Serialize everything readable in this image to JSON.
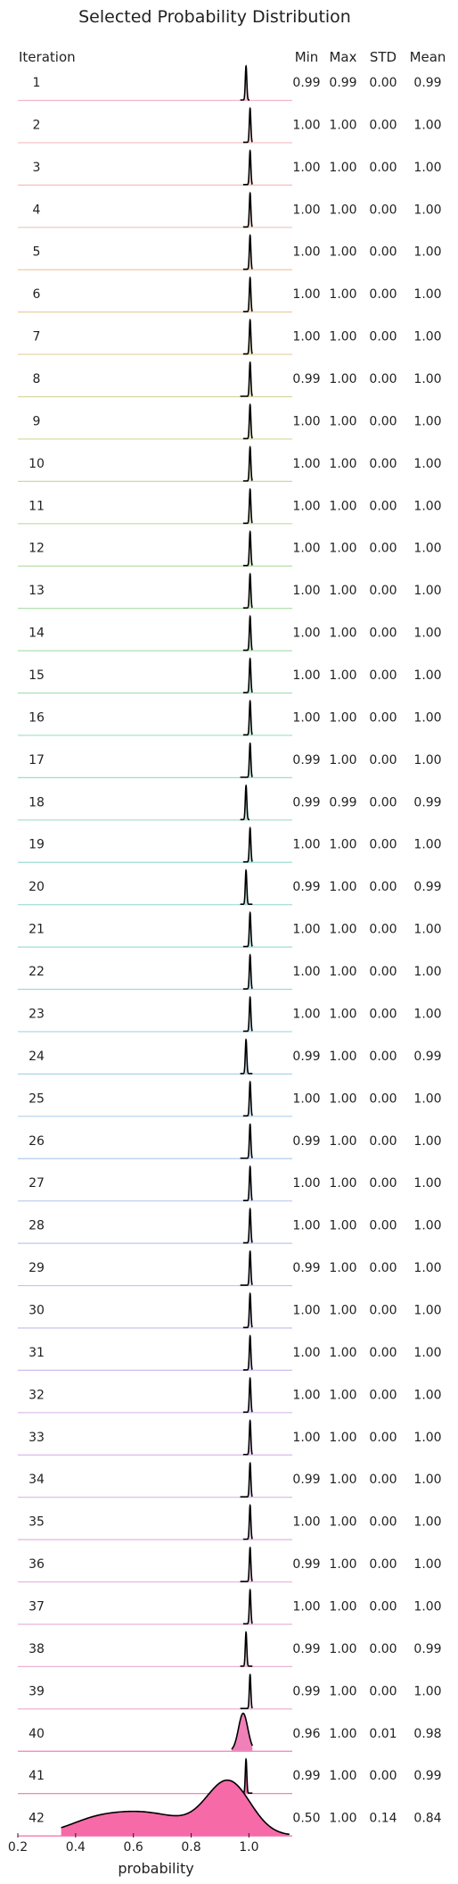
{
  "chart_data": {
    "type": "ridgeline",
    "title": "Selected Probability Distribution",
    "xlabel": "probability",
    "xlim": [
      0.2,
      1.15
    ],
    "xticks": [
      "0.2",
      "0.4",
      "0.6",
      "0.8",
      "1.0"
    ],
    "xtick_values": [
      0.2,
      0.4,
      0.6,
      0.8,
      1.0
    ],
    "columns": [
      "Iteration",
      "Min",
      "Max",
      "STD",
      "Mean"
    ],
    "rows": [
      {
        "iteration": "1",
        "min": "0.99",
        "max": "0.99",
        "std": "0.00",
        "mean": "0.99",
        "color": "#f2b8c6"
      },
      {
        "iteration": "2",
        "min": "1.00",
        "max": "1.00",
        "std": "0.00",
        "mean": "1.00",
        "color": "#f4bcc0"
      },
      {
        "iteration": "3",
        "min": "1.00",
        "max": "1.00",
        "std": "0.00",
        "mean": "1.00",
        "color": "#f5c0b7"
      },
      {
        "iteration": "4",
        "min": "1.00",
        "max": "1.00",
        "std": "0.00",
        "mean": "1.00",
        "color": "#f3c6b0"
      },
      {
        "iteration": "5",
        "min": "1.00",
        "max": "1.00",
        "std": "0.00",
        "mean": "1.00",
        "color": "#efcaa8"
      },
      {
        "iteration": "6",
        "min": "1.00",
        "max": "1.00",
        "std": "0.00",
        "mean": "1.00",
        "color": "#e8cfa3"
      },
      {
        "iteration": "7",
        "min": "1.00",
        "max": "1.00",
        "std": "0.00",
        "mean": "1.00",
        "color": "#e2d29f"
      },
      {
        "iteration": "8",
        "min": "0.99",
        "max": "1.00",
        "std": "0.00",
        "mean": "1.00",
        "color": "#dad59e"
      },
      {
        "iteration": "9",
        "min": "1.00",
        "max": "1.00",
        "std": "0.00",
        "mean": "1.00",
        "color": "#d2d89e"
      },
      {
        "iteration": "10",
        "min": "1.00",
        "max": "1.00",
        "std": "0.00",
        "mean": "1.00",
        "color": "#cadaa0"
      },
      {
        "iteration": "11",
        "min": "1.00",
        "max": "1.00",
        "std": "0.00",
        "mean": "1.00",
        "color": "#c2dca4"
      },
      {
        "iteration": "12",
        "min": "1.00",
        "max": "1.00",
        "std": "0.00",
        "mean": "1.00",
        "color": "#badea9"
      },
      {
        "iteration": "13",
        "min": "1.00",
        "max": "1.00",
        "std": "0.00",
        "mean": "1.00",
        "color": "#b3dfae"
      },
      {
        "iteration": "14",
        "min": "1.00",
        "max": "1.00",
        "std": "0.00",
        "mean": "1.00",
        "color": "#addfb4"
      },
      {
        "iteration": "15",
        "min": "1.00",
        "max": "1.00",
        "std": "0.00",
        "mean": "1.00",
        "color": "#a7dfba"
      },
      {
        "iteration": "16",
        "min": "1.00",
        "max": "1.00",
        "std": "0.00",
        "mean": "1.00",
        "color": "#a3dfc0"
      },
      {
        "iteration": "17",
        "min": "0.99",
        "max": "1.00",
        "std": "0.00",
        "mean": "1.00",
        "color": "#a0dec7"
      },
      {
        "iteration": "18",
        "min": "0.99",
        "max": "0.99",
        "std": "0.00",
        "mean": "0.99",
        "color": "#9eddcd"
      },
      {
        "iteration": "19",
        "min": "1.00",
        "max": "1.00",
        "std": "0.00",
        "mean": "1.00",
        "color": "#9ddcd3"
      },
      {
        "iteration": "20",
        "min": "0.99",
        "max": "1.00",
        "std": "0.00",
        "mean": "0.99",
        "color": "#9edbd8"
      },
      {
        "iteration": "21",
        "min": "1.00",
        "max": "1.00",
        "std": "0.00",
        "mean": "1.00",
        "color": "#a0d9dd"
      },
      {
        "iteration": "22",
        "min": "1.00",
        "max": "1.00",
        "std": "0.00",
        "mean": "1.00",
        "color": "#a3d7e2"
      },
      {
        "iteration": "23",
        "min": "1.00",
        "max": "1.00",
        "std": "0.00",
        "mean": "1.00",
        "color": "#a7d5e6"
      },
      {
        "iteration": "24",
        "min": "0.99",
        "max": "1.00",
        "std": "0.00",
        "mean": "0.99",
        "color": "#abd3e9"
      },
      {
        "iteration": "25",
        "min": "1.00",
        "max": "1.00",
        "std": "0.00",
        "mean": "1.00",
        "color": "#b0d0eb"
      },
      {
        "iteration": "26",
        "min": "0.99",
        "max": "1.00",
        "std": "0.00",
        "mean": "1.00",
        "color": "#b5cdec"
      },
      {
        "iteration": "27",
        "min": "1.00",
        "max": "1.00",
        "std": "0.00",
        "mean": "1.00",
        "color": "#bacaed"
      },
      {
        "iteration": "28",
        "min": "1.00",
        "max": "1.00",
        "std": "0.00",
        "mean": "1.00",
        "color": "#bfc7ee"
      },
      {
        "iteration": "29",
        "min": "0.99",
        "max": "1.00",
        "std": "0.00",
        "mean": "1.00",
        "color": "#c4c4ee"
      },
      {
        "iteration": "30",
        "min": "1.00",
        "max": "1.00",
        "std": "0.00",
        "mean": "1.00",
        "color": "#c9c1ee"
      },
      {
        "iteration": "31",
        "min": "1.00",
        "max": "1.00",
        "std": "0.00",
        "mean": "1.00",
        "color": "#cebeed"
      },
      {
        "iteration": "32",
        "min": "1.00",
        "max": "1.00",
        "std": "0.00",
        "mean": "1.00",
        "color": "#d3bbec"
      },
      {
        "iteration": "33",
        "min": "1.00",
        "max": "1.00",
        "std": "0.00",
        "mean": "1.00",
        "color": "#d8b9ea"
      },
      {
        "iteration": "34",
        "min": "0.99",
        "max": "1.00",
        "std": "0.00",
        "mean": "1.00",
        "color": "#dcb7e7"
      },
      {
        "iteration": "35",
        "min": "1.00",
        "max": "1.00",
        "std": "0.00",
        "mean": "1.00",
        "color": "#e0b6e3"
      },
      {
        "iteration": "36",
        "min": "0.99",
        "max": "1.00",
        "std": "0.00",
        "mean": "1.00",
        "color": "#e4b5df"
      },
      {
        "iteration": "37",
        "min": "1.00",
        "max": "1.00",
        "std": "0.00",
        "mean": "1.00",
        "color": "#e8b5da"
      },
      {
        "iteration": "38",
        "min": "0.99",
        "max": "1.00",
        "std": "0.00",
        "mean": "0.99",
        "color": "#ebb4d5"
      },
      {
        "iteration": "39",
        "min": "0.99",
        "max": "1.00",
        "std": "0.00",
        "mean": "1.00",
        "color": "#eeb4cf"
      },
      {
        "iteration": "40",
        "min": "0.96",
        "max": "1.00",
        "std": "0.01",
        "mean": "0.98",
        "color": "#f080b8"
      },
      {
        "iteration": "41",
        "min": "0.99",
        "max": "1.00",
        "std": "0.00",
        "mean": "0.99",
        "color": "#f472b0"
      },
      {
        "iteration": "42",
        "min": "0.50",
        "max": "1.00",
        "std": "0.14",
        "mean": "0.84",
        "color": "#f66aa8"
      }
    ]
  }
}
